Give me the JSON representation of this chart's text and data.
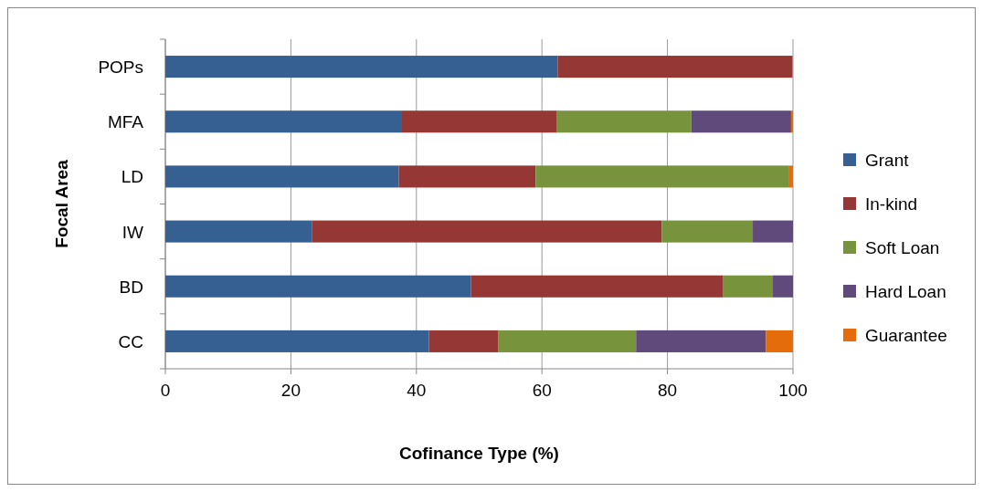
{
  "chart_data": {
    "type": "bar",
    "orientation": "horizontal",
    "stacked": true,
    "xlabel": "Cofinance Type (%)",
    "ylabel": "Focal Area",
    "categories": [
      "POPs",
      "MFA",
      "LD",
      "IW",
      "BD",
      "CC"
    ],
    "series": [
      {
        "name": "Grant",
        "color": "#366092",
        "values": [
          62.5,
          37.7,
          37.2,
          23.4,
          48.7,
          42.0
        ]
      },
      {
        "name": "In-kind",
        "color": "#953735",
        "values": [
          37.4,
          24.6,
          21.8,
          55.7,
          40.1,
          11.0
        ]
      },
      {
        "name": "Soft Loan",
        "color": "#77933c",
        "values": [
          0,
          21.5,
          40.4,
          14.5,
          8.0,
          22.0
        ]
      },
      {
        "name": "Hard Loan",
        "color": "#604a7b",
        "values": [
          0,
          15.9,
          0,
          6.4,
          3.2,
          20.7
        ]
      },
      {
        "name": "Guarantee",
        "color": "#e46c0a",
        "values": [
          0.1,
          0.3,
          0.6,
          0,
          0,
          4.3
        ]
      }
    ],
    "xlim": [
      0,
      100
    ],
    "xticks": [
      0,
      20,
      40,
      60,
      80,
      100
    ],
    "grid": "x",
    "legend": "right"
  }
}
